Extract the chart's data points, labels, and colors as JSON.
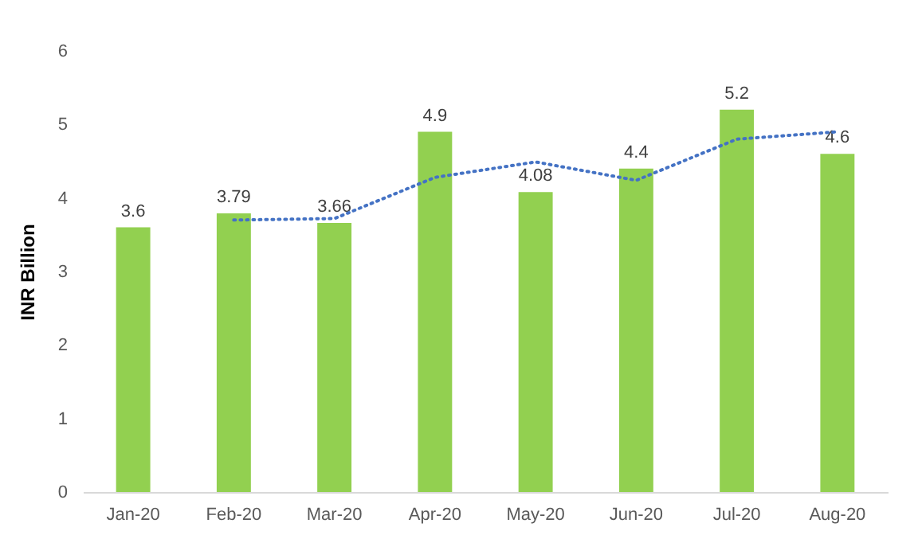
{
  "chart_data": {
    "type": "bar",
    "ylabel": "INR Billion",
    "categories": [
      "Jan-20",
      "Feb-20",
      "Mar-20",
      "Apr-20",
      "May-20",
      "Jun-20",
      "Jul-20",
      "Aug-20"
    ],
    "series": [
      {
        "color": "#92d050",
        "values": [
          3.6,
          3.79,
          3.66,
          4.9,
          4.08,
          4.4,
          5.2,
          4.6
        ],
        "value_labels": [
          "3.6",
          "3.79",
          "3.66",
          "4.9",
          "4.08",
          "4.4",
          "5.2",
          "4.6"
        ]
      },
      {
        "type": "line",
        "color": "#4472c4",
        "line_style": "dotted",
        "values": [
          null,
          3.7,
          3.72,
          4.28,
          4.49,
          4.24,
          4.8,
          4.9
        ]
      }
    ],
    "ylim": [
      0,
      6
    ],
    "yticks": [
      0,
      1,
      2,
      3,
      4,
      5,
      6
    ],
    "grid": false
  }
}
